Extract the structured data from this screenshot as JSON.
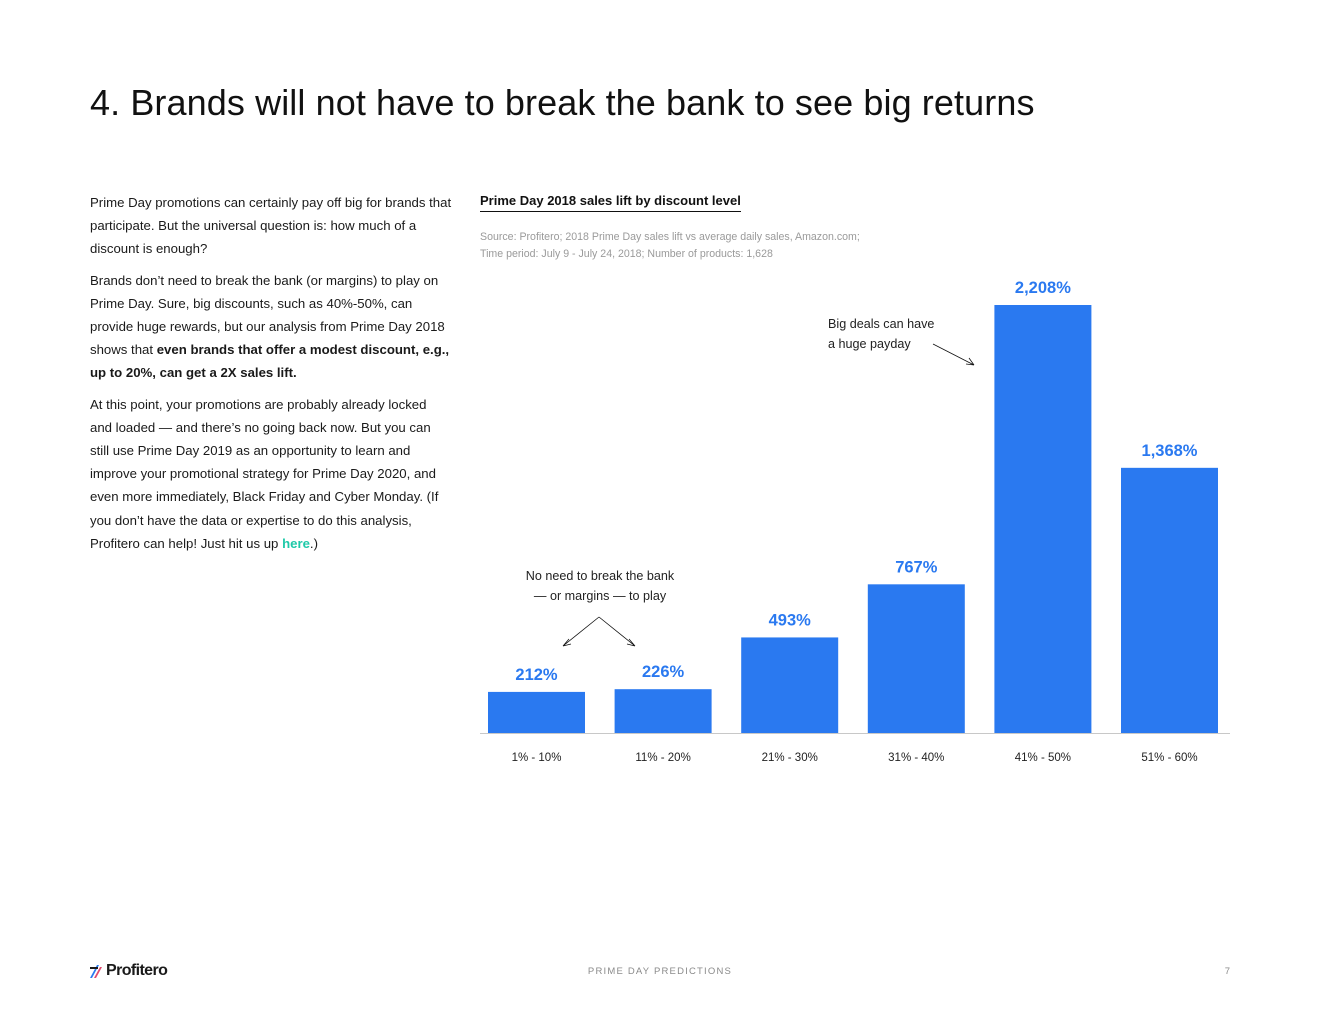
{
  "page": {
    "title": "4. Brands will not have to break the bank to see big returns"
  },
  "body": {
    "p1": "Prime Day promotions can certainly pay off big for brands that participate. But the universal question is: how much of a discount is enough?",
    "p2_pre": "Brands don’t need to break the bank (or margins) to play on Prime Day. Sure, big discounts, such as 40%-50%, can provide huge rewards, but our analysis from Prime Day 2018 shows that ",
    "p2_bold": "even brands that offer a modest discount, e.g., up to 20%, can get a 2X sales lift.",
    "p3_pre": "At this point, your promotions are probably already locked and loaded — and there’s no going back now. But you can still use Prime Day 2019 as an opportunity to learn and improve your promotional strategy for Prime Day 2020, and even more immediately, Black Friday and Cyber Monday. (If you don’t have the data or expertise to do this analysis, Profitero can help! Just hit us up ",
    "p3_link": "here",
    "p3_post": ".)"
  },
  "chart": {
    "source_line1": "Source: Profitero; 2018 Prime Day sales lift vs average daily sales, Amazon.com;",
    "source_line2": "Time period: July 9 - July 24, 2018; Number of products: 1,628",
    "annotation_left_line1": "No need to break the bank",
    "annotation_left_line2": "— or margins — to play",
    "annotation_right_line1": "Big deals can have",
    "annotation_right_line2": "a huge payday"
  },
  "chart_data": {
    "type": "bar",
    "title": "Prime Day 2018 sales lift by discount level",
    "categories": [
      "1% - 10%",
      "11% - 20%",
      "21% - 30%",
      "31% - 40%",
      "41% - 50%",
      "51% - 60%"
    ],
    "values": [
      212,
      226,
      493,
      767,
      2208,
      1368
    ],
    "value_labels": [
      "212%",
      "226%",
      "493%",
      "767%",
      "2,208%",
      "1,368%"
    ],
    "ylim": [
      0,
      2208
    ],
    "grid": false,
    "bar_color": "#2a79f0",
    "label_color": "#2a79f0"
  },
  "footer": {
    "logo": "Profitero",
    "center": "PRIME DAY PREDICTIONS",
    "page_number": "7"
  },
  "colors": {
    "accent": "#2a79f0",
    "link": "#1ec9a8"
  }
}
